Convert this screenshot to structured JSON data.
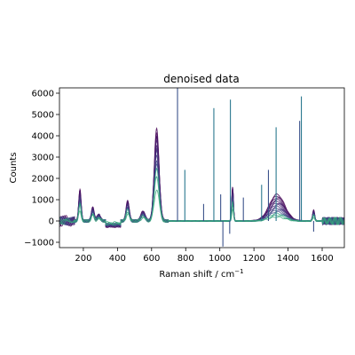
{
  "chart_data": {
    "type": "line",
    "title": "denoised data",
    "xlabel": "Raman shift / cm",
    "xlabel_superscript": "−1",
    "ylabel": "Counts",
    "xlim": [
      60,
      1730
    ],
    "ylim": [
      -1250,
      6250
    ],
    "xticks": [
      200,
      400,
      600,
      800,
      1000,
      1200,
      1400,
      1600
    ],
    "yticks": [
      -1000,
      0,
      1000,
      2000,
      3000,
      4000,
      5000,
      6000
    ],
    "grid": false,
    "colormap": [
      "#440154",
      "#3b528b",
      "#21918c",
      "#5ec962"
    ],
    "series_count": 14,
    "broad_peaks": [
      {
        "x": 180,
        "height": 1450,
        "width": 7
      },
      {
        "x": 255,
        "height": 650,
        "width": 8
      },
      {
        "x": 290,
        "height": 300,
        "width": 10
      },
      {
        "x": 460,
        "height": 950,
        "width": 9
      },
      {
        "x": 550,
        "height": 450,
        "width": 12
      },
      {
        "x": 630,
        "height": 4300,
        "width": 14
      },
      {
        "x": 1075,
        "height": 1600,
        "width": 5
      },
      {
        "x": 1335,
        "height": 1250,
        "width": 45
      },
      {
        "x": 1550,
        "height": 500,
        "width": 6
      }
    ],
    "spikes": [
      {
        "x": 752,
        "height": 6250
      },
      {
        "x": 795,
        "height": 2400
      },
      {
        "x": 905,
        "height": 800
      },
      {
        "x": 965,
        "height": 5300
      },
      {
        "x": 1005,
        "height": 1250
      },
      {
        "x": 1062,
        "height": 5700
      },
      {
        "x": 1138,
        "height": 1100
      },
      {
        "x": 1245,
        "height": 1700
      },
      {
        "x": 1285,
        "height": 2400
      },
      {
        "x": 1330,
        "height": 4400
      },
      {
        "x": 1468,
        "height": 4700
      },
      {
        "x": 1478,
        "height": 5850
      }
    ],
    "negative_spikes": [
      {
        "x": 1018,
        "height": -1200
      },
      {
        "x": 1058,
        "height": -600
      },
      {
        "x": 1550,
        "height": -500
      }
    ]
  }
}
